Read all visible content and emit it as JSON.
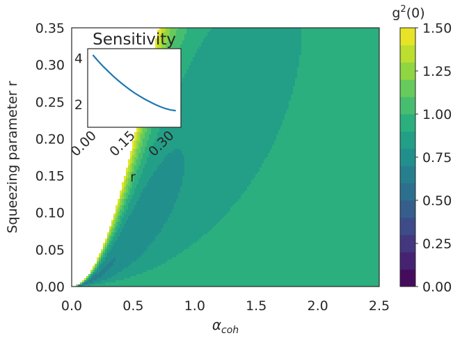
{
  "chart_data": [
    {
      "type": "contourf",
      "xlabel": "α_coh",
      "xlabel_main": "α",
      "xlabel_sub": "coh",
      "ylabel": "Squeezing parameter r",
      "xlim": [
        0.0,
        2.5
      ],
      "ylim": [
        0.0,
        0.35
      ],
      "xticks": [
        "0.0",
        "0.5",
        "1.0",
        "1.5",
        "2.0",
        "2.5"
      ],
      "yticks": [
        "0.00",
        "0.05",
        "0.10",
        "0.15",
        "0.20",
        "0.25",
        "0.30",
        "0.35"
      ],
      "grid": false,
      "colorbar": {
        "label": "g²(0)",
        "label_base": "g",
        "label_sup": "2",
        "label_tail": "(0)",
        "min": 0.0,
        "max": 1.5,
        "levels": [
          0.0,
          0.1,
          0.2,
          0.3,
          0.4,
          0.5,
          0.6,
          0.7,
          0.8,
          0.9,
          1.0,
          1.1,
          1.2,
          1.3,
          1.4,
          1.5
        ],
        "ticks": [
          "0.00",
          "0.25",
          "0.50",
          "0.75",
          "1.00",
          "1.25",
          "1.50"
        ],
        "colormap": "viridis"
      }
    },
    {
      "type": "line",
      "title": "Sensitivity",
      "xlabel": "r",
      "xticks": [
        "0.00",
        "0.15",
        "0.30"
      ],
      "yticks": [
        "2",
        "4"
      ],
      "xlim": [
        -0.02,
        0.34
      ],
      "ylim": [
        1.0,
        4.4
      ],
      "x": [
        0.0,
        0.02,
        0.04,
        0.06,
        0.08,
        0.1,
        0.12,
        0.14,
        0.16,
        0.18,
        0.2,
        0.22,
        0.24,
        0.26,
        0.28,
        0.3,
        0.32
      ],
      "y": [
        4.13,
        3.87,
        3.63,
        3.41,
        3.2,
        3.0,
        2.82,
        2.65,
        2.49,
        2.35,
        2.22,
        2.1,
        1.99,
        1.89,
        1.81,
        1.75,
        1.72
      ],
      "color": "#1f77b4"
    }
  ]
}
